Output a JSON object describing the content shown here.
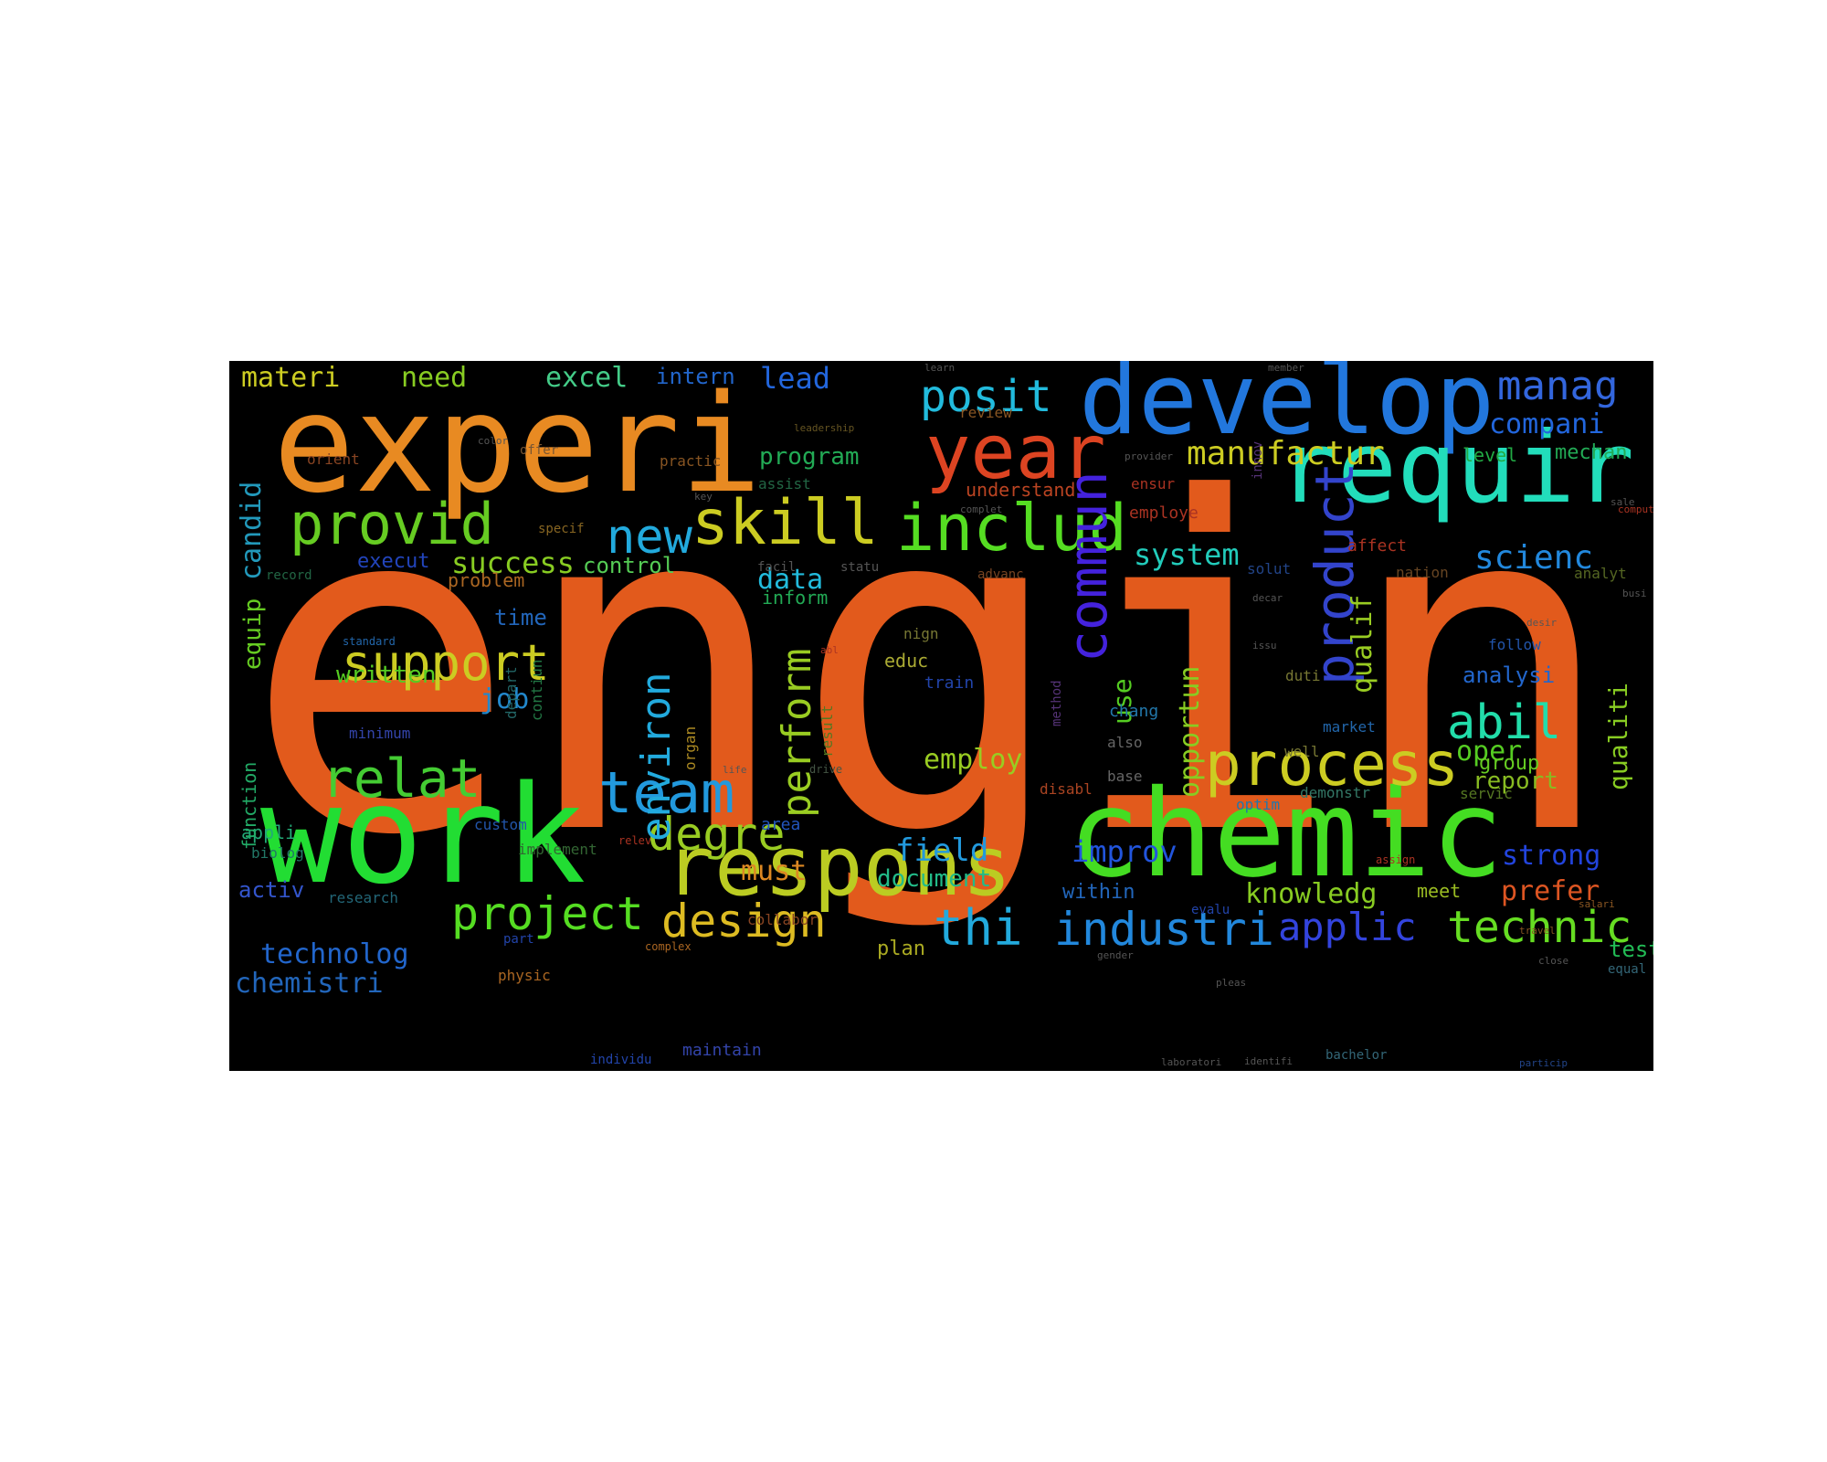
{
  "wordcloud": {
    "background": "#000000",
    "words": [
      {
        "text": "engin",
        "color": "#e25a1c"
      },
      {
        "text": "experi",
        "color": "#e88a22"
      },
      {
        "text": "work",
        "color": "#22dd33"
      },
      {
        "text": "chemic",
        "color": "#44dd22"
      },
      {
        "text": "develop",
        "color": "#2277dd"
      },
      {
        "text": "requir",
        "color": "#22ddbb"
      },
      {
        "text": "year",
        "color": "#dd4422"
      },
      {
        "text": "respons",
        "color": "#bbcc22"
      },
      {
        "text": "includ",
        "color": "#55dd22"
      },
      {
        "text": "skill",
        "color": "#cccc22"
      },
      {
        "text": "provid",
        "color": "#66cc22"
      },
      {
        "text": "new",
        "color": "#22aadd"
      },
      {
        "text": "process",
        "color": "#cccc22"
      },
      {
        "text": "team",
        "color": "#2299dd"
      },
      {
        "text": "relat",
        "color": "#44cc33"
      },
      {
        "text": "support",
        "color": "#cccc22"
      },
      {
        "text": "project",
        "color": "#55dd22"
      },
      {
        "text": "design",
        "color": "#ddbb22"
      },
      {
        "text": "thi",
        "color": "#22aadd"
      },
      {
        "text": "industri",
        "color": "#2288dd"
      },
      {
        "text": "applic",
        "color": "#3344dd"
      },
      {
        "text": "technic",
        "color": "#66dd22"
      },
      {
        "text": "degre",
        "color": "#99cc22"
      },
      {
        "text": "posit",
        "color": "#22bbdd"
      },
      {
        "text": "manag",
        "color": "#3366dd"
      },
      {
        "text": "manufactur",
        "color": "#cccc22"
      },
      {
        "text": "compani",
        "color": "#2266dd"
      },
      {
        "text": "scienc",
        "color": "#2288dd"
      },
      {
        "text": "system",
        "color": "#22ccbb"
      },
      {
        "text": "abil",
        "color": "#22ddaa"
      },
      {
        "text": "commun",
        "color": "#4422dd"
      },
      {
        "text": "product",
        "color": "#3344cc"
      },
      {
        "text": "environ",
        "color": "#22aadd"
      },
      {
        "text": "perform",
        "color": "#99cc22"
      },
      {
        "text": "materi",
        "color": "#cccc22"
      },
      {
        "text": "need",
        "color": "#88cc22"
      },
      {
        "text": "excel",
        "color": "#44cc88"
      },
      {
        "text": "intern",
        "color": "#2266cc"
      },
      {
        "text": "lead",
        "color": "#2266dd"
      },
      {
        "text": "success",
        "color": "#88cc22"
      },
      {
        "text": "control",
        "color": "#55cc55"
      },
      {
        "text": "data",
        "color": "#22bbdd"
      },
      {
        "text": "qualif",
        "color": "#99cc22"
      },
      {
        "text": "opportun",
        "color": "#88cc22"
      },
      {
        "text": "use",
        "color": "#55cc22"
      },
      {
        "text": "employ",
        "color": "#99cc22"
      },
      {
        "text": "improv",
        "color": "#2255dd"
      },
      {
        "text": "field",
        "color": "#2299dd"
      },
      {
        "text": "document",
        "color": "#22bb88"
      },
      {
        "text": "knowledg",
        "color": "#88cc22"
      },
      {
        "text": "strong",
        "color": "#2244dd"
      },
      {
        "text": "prefer",
        "color": "#dd5522"
      },
      {
        "text": "must",
        "color": "#dd8822"
      },
      {
        "text": "job",
        "color": "#2288cc"
      },
      {
        "text": "written",
        "color": "#55cc22"
      },
      {
        "text": "time",
        "color": "#2266bb"
      },
      {
        "text": "technolog",
        "color": "#2266cc"
      },
      {
        "text": "chemistri",
        "color": "#2266bb"
      },
      {
        "text": "program",
        "color": "#22aa55"
      },
      {
        "text": "candid",
        "color": "#2299bb"
      },
      {
        "text": "equip",
        "color": "#66cc22"
      },
      {
        "text": "analysi",
        "color": "#2266cc"
      },
      {
        "text": "qualiti",
        "color": "#88cc22"
      },
      {
        "text": "report",
        "color": "#88bb22"
      },
      {
        "text": "oper",
        "color": "#55cc22"
      },
      {
        "text": "group",
        "color": "#66cc22"
      },
      {
        "text": "within",
        "color": "#2266bb"
      },
      {
        "text": "activ",
        "color": "#3355cc"
      },
      {
        "text": "mechan",
        "color": "#22aa55"
      },
      {
        "text": "level",
        "color": "#22aa44"
      },
      {
        "text": "test",
        "color": "#22bb55"
      },
      {
        "text": "plan",
        "color": "#aaaa22"
      },
      {
        "text": "inform",
        "color": "#22aa55"
      },
      {
        "text": "problem",
        "color": "#aa6622"
      },
      {
        "text": "execut",
        "color": "#2244bb"
      },
      {
        "text": "educ",
        "color": "#aaaa33"
      },
      {
        "text": "understand",
        "color": "#bb4422"
      },
      {
        "text": "meet",
        "color": "#99bb22"
      },
      {
        "text": "area",
        "color": "#2255bb"
      },
      {
        "text": "appli",
        "color": "#22aa77"
      },
      {
        "text": "maintain",
        "color": "#3344aa"
      },
      {
        "text": "custom",
        "color": "#2255aa"
      },
      {
        "text": "research",
        "color": "#226677"
      },
      {
        "text": "biolog",
        "color": "#227766"
      },
      {
        "text": "function",
        "color": "#22aa66"
      },
      {
        "text": "minimum",
        "color": "#3344aa"
      },
      {
        "text": "collabor",
        "color": "#884422"
      },
      {
        "text": "physic",
        "color": "#aa6622"
      },
      {
        "text": "organ",
        "color": "#aa8822"
      },
      {
        "text": "contiun",
        "color": "#227744"
      },
      {
        "text": "depart",
        "color": "#226666"
      },
      {
        "text": "implement",
        "color": "#336633"
      },
      {
        "text": "result",
        "color": "#557722"
      },
      {
        "text": "train",
        "color": "#2244aa"
      },
      {
        "text": "chang",
        "color": "#2277aa"
      },
      {
        "text": "also",
        "color": "#666666"
      },
      {
        "text": "base",
        "color": "#666666"
      },
      {
        "text": "disabl",
        "color": "#aa4422"
      },
      {
        "text": "optim",
        "color": "#2277aa"
      },
      {
        "text": "servic",
        "color": "#557722"
      },
      {
        "text": "demonstr",
        "color": "#337766"
      },
      {
        "text": "well",
        "color": "#777733"
      },
      {
        "text": "market",
        "color": "#2266aa"
      },
      {
        "text": "duti",
        "color": "#777733"
      },
      {
        "text": "follow",
        "color": "#2255aa"
      },
      {
        "text": "analyt",
        "color": "#556622"
      },
      {
        "text": "nation",
        "color": "#664422"
      },
      {
        "text": "solut",
        "color": "#224488"
      },
      {
        "text": "affect",
        "color": "#aa3322"
      },
      {
        "text": "employe",
        "color": "#aa3322"
      },
      {
        "text": "ensur",
        "color": "#aa3322"
      },
      {
        "text": "assist",
        "color": "#226644"
      },
      {
        "text": "practic",
        "color": "#885522"
      },
      {
        "text": "orient",
        "color": "#884422"
      },
      {
        "text": "review",
        "color": "#885522"
      },
      {
        "text": "offer",
        "color": "#775533"
      },
      {
        "text": "record",
        "color": "#226644"
      },
      {
        "text": "specif",
        "color": "#886622"
      },
      {
        "text": "advanc",
        "color": "#774422"
      },
      {
        "text": "equal",
        "color": "#336677"
      },
      {
        "text": "bachelor",
        "color": "#336677"
      },
      {
        "text": "facil",
        "color": "#555555"
      },
      {
        "text": "statu",
        "color": "#555555"
      },
      {
        "text": "complex",
        "color": "#aa6622"
      },
      {
        "text": "part",
        "color": "#2244aa"
      },
      {
        "text": "evalu",
        "color": "#2244aa"
      },
      {
        "text": "individu",
        "color": "#2244aa"
      },
      {
        "text": "nign",
        "color": "#777733"
      },
      {
        "text": "standard",
        "color": "#2266aa"
      },
      {
        "text": "leadership",
        "color": "#665522"
      },
      {
        "text": "laboratori",
        "color": "#555555"
      },
      {
        "text": "identifi",
        "color": "#555555"
      },
      {
        "text": "particip",
        "color": "#224488"
      },
      {
        "text": "travel",
        "color": "#885522"
      },
      {
        "text": "salari",
        "color": "#885522"
      },
      {
        "text": "innov",
        "color": "#553377"
      },
      {
        "text": "life",
        "color": "#555555"
      },
      {
        "text": "drive",
        "color": "#445544"
      },
      {
        "text": "method",
        "color": "#553377"
      },
      {
        "text": "assign",
        "color": "#aa3322"
      },
      {
        "text": "relev",
        "color": "#aa3322"
      },
      {
        "text": "key",
        "color": "#555555"
      },
      {
        "text": "color",
        "color": "#555555"
      },
      {
        "text": "learn",
        "color": "#555555"
      },
      {
        "text": "member",
        "color": "#555555"
      },
      {
        "text": "provider",
        "color": "#555555"
      },
      {
        "text": "gender",
        "color": "#555555"
      },
      {
        "text": "close",
        "color": "#555555"
      },
      {
        "text": "sale",
        "color": "#555555"
      },
      {
        "text": "busi",
        "color": "#555555"
      },
      {
        "text": "abl",
        "color": "#aa3322"
      },
      {
        "text": "issu",
        "color": "#555555"
      },
      {
        "text": "decar",
        "color": "#555555"
      },
      {
        "text": "desir",
        "color": "#555555"
      },
      {
        "text": "comput",
        "color": "#aa3322"
      },
      {
        "text": "complet",
        "color": "#555555"
      },
      {
        "text": "pleas",
        "color": "#555555"
      }
    ]
  }
}
